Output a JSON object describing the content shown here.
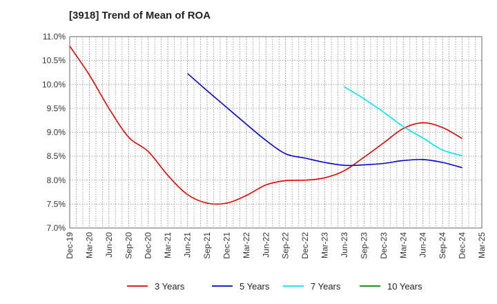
{
  "chart_data": {
    "type": "line",
    "title": "[3918]  Trend of Mean of ROA",
    "xlabel": "",
    "ylabel": "",
    "ylim": [
      7.0,
      11.0
    ],
    "grid": true,
    "legend_placement": "bottom",
    "x_tick_labels": [
      "Dec-19",
      "Mar-20",
      "Jun-20",
      "Sep-20",
      "Dec-20",
      "Mar-21",
      "Jun-21",
      "Sep-21",
      "Dec-21",
      "Mar-22",
      "Jun-22",
      "Sep-22",
      "Dec-22",
      "Mar-23",
      "Jun-23",
      "Sep-23",
      "Dec-23",
      "Mar-24",
      "Jun-24",
      "Sep-24",
      "Dec-24",
      "Mar-25"
    ],
    "y_tick_labels": [
      "11.0%",
      "10.5%",
      "10.0%",
      "9.5%",
      "9.0%",
      "8.5%",
      "8.0%",
      "7.5%",
      "7.0%"
    ],
    "y_ticks": [
      11.0,
      10.5,
      10.0,
      9.5,
      9.0,
      8.5,
      8.0,
      7.5,
      7.0
    ],
    "series": [
      {
        "name": "3 Years",
        "color": "#e00000",
        "x": [
          "Dec-19",
          "Mar-20",
          "Jun-20",
          "Sep-20",
          "Dec-20",
          "Mar-21",
          "Jun-21",
          "Sep-21",
          "Dec-21",
          "Mar-22",
          "Jun-22",
          "Sep-22",
          "Dec-22",
          "Mar-23",
          "Jun-23",
          "Sep-23",
          "Dec-23",
          "Mar-24",
          "Jun-24",
          "Sep-24",
          "Dec-24"
        ],
        "values": [
          10.8,
          10.2,
          9.5,
          8.9,
          8.6,
          8.1,
          7.7,
          7.52,
          7.52,
          7.68,
          7.9,
          7.99,
          8.0,
          8.05,
          8.2,
          8.48,
          8.78,
          9.08,
          9.2,
          9.1,
          8.87
        ]
      },
      {
        "name": "5 Years",
        "color": "#0000cc",
        "x": [
          "Jun-21",
          "Sep-21",
          "Dec-21",
          "Mar-22",
          "Jun-22",
          "Sep-22",
          "Dec-22",
          "Mar-23",
          "Jun-23",
          "Sep-23",
          "Dec-23",
          "Mar-24",
          "Jun-24",
          "Sep-24",
          "Dec-24"
        ],
        "values": [
          10.23,
          9.87,
          9.52,
          9.17,
          8.83,
          8.55,
          8.46,
          8.37,
          8.31,
          8.32,
          8.35,
          8.41,
          8.43,
          8.37,
          8.26
        ]
      },
      {
        "name": "7 Years",
        "color": "#00e5ee",
        "x": [
          "Jun-23",
          "Sep-23",
          "Dec-23",
          "Mar-24",
          "Jun-24",
          "Sep-24",
          "Dec-24"
        ],
        "values": [
          9.95,
          9.7,
          9.42,
          9.12,
          8.88,
          8.63,
          8.51
        ]
      },
      {
        "name": "10 Years",
        "color": "#008000",
        "x": [],
        "values": []
      }
    ]
  }
}
